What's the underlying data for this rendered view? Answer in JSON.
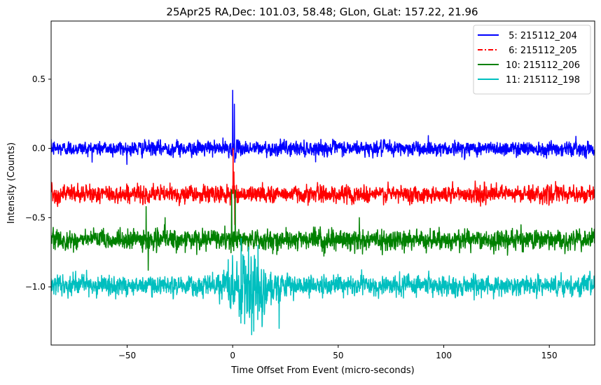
{
  "chart_data": {
    "type": "line",
    "title": "25Apr25 RA,Dec:  101.03,  58.48; GLon, GLat:  157.22,  21.96",
    "xlabel": "Time Offset From Event (micro-seconds)",
    "ylabel": "Intensity (Counts)",
    "xlim": [
      -86,
      171.5
    ],
    "ylim": [
      -1.42,
      0.92
    ],
    "xticks": [
      -50,
      0,
      50,
      100,
      150
    ],
    "xtick_labels": [
      "−50",
      "0",
      "50",
      "100",
      "150"
    ],
    "yticks": [
      0.5,
      0.0,
      -0.5,
      -1.0
    ],
    "ytick_labels": [
      "0.5",
      "0.0",
      "−0.5",
      "−1.0"
    ],
    "grid": false,
    "legend_position": "top-right",
    "sample_step_us": 0.1,
    "series": [
      {
        "name": "5: 215112_204",
        "legend_label": " 5: 215112_204",
        "color": "#0000ff",
        "dash": "solid",
        "baseline": 0.0,
        "noise_sd": 0.03,
        "features": [
          {
            "x": 0.0,
            "y": 0.42
          },
          {
            "x": 0.8,
            "y": 0.32
          },
          {
            "x": 1.0,
            "y": -0.1
          }
        ]
      },
      {
        "name": "6: 215112_205",
        "legend_label": " 6: 215112_205",
        "color": "#ff0000",
        "dash": "dashdot",
        "baseline": -0.33,
        "noise_sd": 0.035,
        "features": [
          {
            "x": 0.2,
            "y": 0.0
          },
          {
            "x": 0.6,
            "y": -0.17
          },
          {
            "x": 1.0,
            "y": -0.55
          }
        ]
      },
      {
        "name": "10: 215112_206",
        "legend_label": "10: 215112_206",
        "color": "#008000",
        "dash": "solid",
        "baseline": -0.66,
        "noise_sd": 0.04,
        "features": [
          {
            "x": -41,
            "y": -0.42
          },
          {
            "x": -40,
            "y": -0.88
          },
          {
            "x": -32,
            "y": -0.5
          },
          {
            "x": -0.5,
            "y": -0.3
          },
          {
            "x": 1.2,
            "y": -0.3
          },
          {
            "x": 60,
            "y": -0.5
          }
        ]
      },
      {
        "name": "11: 215112_198",
        "legend_label": "11: 215112_198",
        "color": "#00bfbf",
        "dash": "solid",
        "baseline": -0.99,
        "noise_sd": 0.04,
        "burst": {
          "start": -8,
          "end": 25,
          "extra_sd": 0.1
        },
        "features": [
          {
            "x": 4,
            "y": -0.65
          },
          {
            "x": 12,
            "y": -0.7
          },
          {
            "x": 10,
            "y": -1.32
          },
          {
            "x": 22,
            "y": -1.3
          }
        ]
      }
    ]
  }
}
